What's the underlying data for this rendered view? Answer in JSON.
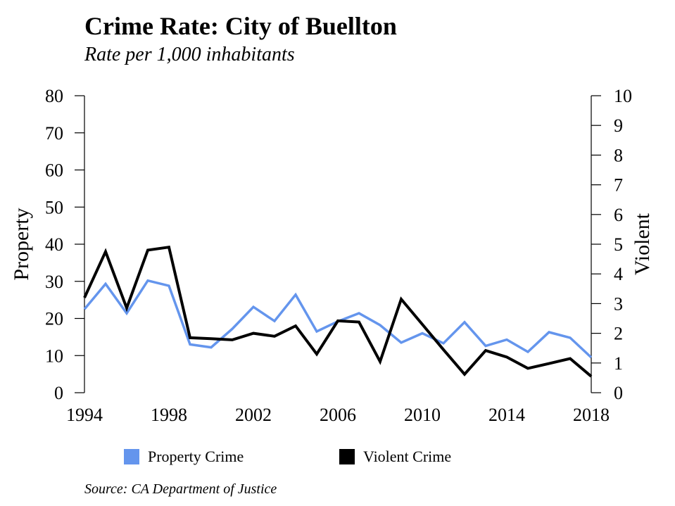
{
  "chart_data": {
    "type": "line",
    "title": "Crime Rate: City of Buellton",
    "subtitle": "Rate per 1,000 inhabitants",
    "source": "Source: CA Department of Justice",
    "x": [
      1994,
      1995,
      1996,
      1997,
      1998,
      1999,
      2000,
      2001,
      2002,
      2003,
      2004,
      2005,
      2006,
      2007,
      2008,
      2009,
      2010,
      2011,
      2012,
      2013,
      2014,
      2015,
      2016,
      2017,
      2018
    ],
    "xticks": [
      "1994",
      "1998",
      "2002",
      "2006",
      "2010",
      "2014",
      "2018"
    ],
    "xlim": [
      1994,
      2018
    ],
    "y_left": {
      "label": "Property",
      "lim": [
        0,
        80
      ],
      "ticks": [
        "0",
        "10",
        "20",
        "30",
        "40",
        "50",
        "60",
        "70",
        "80"
      ]
    },
    "y_right": {
      "label": "Violent",
      "lim": [
        0,
        10
      ],
      "ticks": [
        "0",
        "1",
        "2",
        "3",
        "4",
        "5",
        "6",
        "7",
        "8",
        "9",
        "10"
      ]
    },
    "grid": false,
    "legend_position": "bottom",
    "series": [
      {
        "name": "Property Crime",
        "axis": "left",
        "color": "#6495ED",
        "values": [
          22.5,
          29.3,
          21.4,
          30.2,
          28.8,
          13.0,
          12.2,
          17.2,
          23.1,
          19.3,
          26.4,
          16.5,
          19.2,
          21.4,
          18.2,
          13.5,
          16.0,
          13.3,
          19.0,
          12.6,
          14.3,
          11.0,
          16.3,
          14.8,
          9.5
        ]
      },
      {
        "name": "Violent Crime",
        "axis": "right",
        "color": "#000000",
        "values": [
          3.2,
          4.75,
          2.85,
          4.8,
          4.9,
          1.85,
          1.82,
          1.78,
          2.0,
          1.9,
          2.25,
          1.3,
          2.42,
          2.38,
          1.05,
          3.15,
          2.3,
          1.45,
          0.62,
          1.42,
          1.2,
          0.82,
          0.98,
          1.15,
          0.55
        ]
      }
    ]
  }
}
